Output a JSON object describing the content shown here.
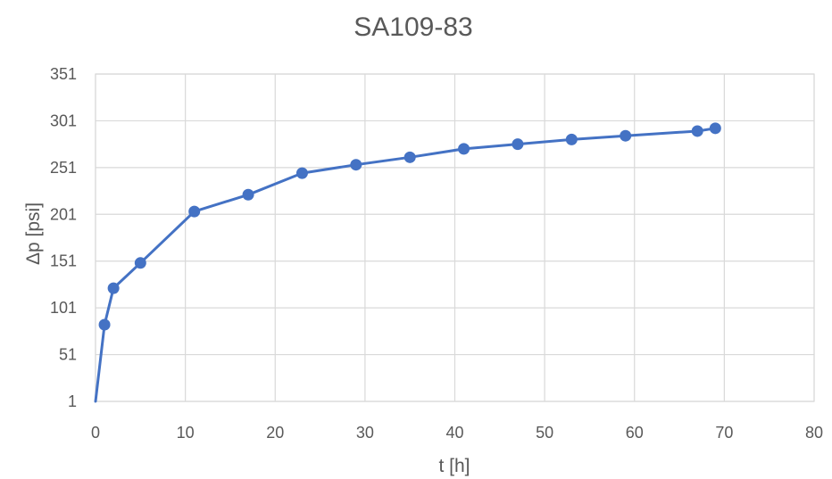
{
  "chart_data": {
    "type": "line",
    "title": "SA109-83",
    "xlabel": "t [h]",
    "ylabel": "Δp [psi]",
    "xlim": [
      0,
      80
    ],
    "ylim": [
      1,
      351
    ],
    "x_ticks": [
      0,
      10,
      20,
      30,
      40,
      50,
      60,
      70,
      80
    ],
    "y_ticks": [
      1,
      51,
      101,
      151,
      201,
      251,
      301,
      351
    ],
    "grid": true,
    "legend": "none",
    "marker": "circle",
    "series": [
      {
        "color": "#4472c4",
        "points": [
          {
            "x": 0,
            "y": 1
          },
          {
            "x": 1,
            "y": 83
          },
          {
            "x": 2,
            "y": 122
          },
          {
            "x": 5,
            "y": 149
          },
          {
            "x": 11,
            "y": 204
          },
          {
            "x": 17,
            "y": 222
          },
          {
            "x": 23,
            "y": 245
          },
          {
            "x": 29,
            "y": 254
          },
          {
            "x": 35,
            "y": 262
          },
          {
            "x": 41,
            "y": 271
          },
          {
            "x": 47,
            "y": 276
          },
          {
            "x": 53,
            "y": 281
          },
          {
            "x": 59,
            "y": 285
          },
          {
            "x": 67,
            "y": 290
          },
          {
            "x": 69,
            "y": 293
          }
        ]
      }
    ]
  }
}
